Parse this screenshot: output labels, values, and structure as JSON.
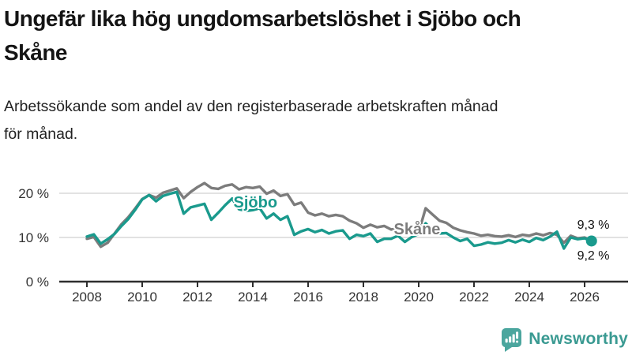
{
  "header": {
    "title_line1": "Ungefär lika hög ungdomsarbetslöshet i Sjöbo och",
    "title_line2": "Skåne",
    "subtitle_line1": "Arbetssökande som andel av den registerbaserade arbetskraften månad",
    "subtitle_line2": "för månad."
  },
  "chart_data": {
    "type": "line",
    "title": "Ungefär lika hög ungdomsarbetslöshet i Sjöbo och Skåne",
    "subtitle": "Arbetssökande som andel av den registerbaserade arbetskraften månad för månad.",
    "xlabel": "",
    "ylabel": "",
    "x_base": 2008,
    "x_step": 0.25,
    "xlim": [
      2007.6,
      2026.6
    ],
    "ylim": [
      0,
      25.4
    ],
    "grid": "horizontal",
    "grid_color": "#d8d8d8",
    "axis_color": "#2e2e2e",
    "tick_label_color": "#333333",
    "x_ticks": [
      {
        "value": 2008,
        "label": "2008"
      },
      {
        "value": 2010,
        "label": "2010"
      },
      {
        "value": 2012,
        "label": "2012"
      },
      {
        "value": 2014,
        "label": "2014"
      },
      {
        "value": 2016,
        "label": "2016"
      },
      {
        "value": 2018,
        "label": "2018"
      },
      {
        "value": 2020,
        "label": "2020"
      },
      {
        "value": 2022,
        "label": "2022"
      },
      {
        "value": 2024,
        "label": "2024"
      },
      {
        "value": 2026,
        "label": "2026"
      }
    ],
    "y_ticks": [
      {
        "value": 0,
        "label": "0 %"
      },
      {
        "value": 10,
        "label": "10 %"
      },
      {
        "value": 20,
        "label": "20 %"
      }
    ],
    "series": [
      {
        "name": "Skåne",
        "color": "#7c7c7c",
        "end_label": "9,3 %",
        "end_dot": false,
        "values": [
          9.7,
          10.1,
          7.9,
          8.8,
          10.9,
          13.0,
          14.6,
          16.6,
          18.7,
          19.6,
          19.0,
          20.1,
          20.6,
          21.1,
          18.9,
          20.3,
          21.4,
          22.3,
          21.2,
          21.0,
          21.7,
          22.0,
          20.9,
          21.4,
          21.2,
          21.5,
          19.9,
          20.6,
          19.4,
          19.8,
          17.4,
          17.9,
          15.6,
          15.0,
          15.4,
          14.8,
          15.1,
          14.8,
          13.8,
          13.2,
          12.2,
          12.9,
          12.3,
          12.6,
          11.8,
          12.0,
          11.2,
          11.5,
          11.2,
          16.6,
          15.2,
          13.8,
          13.3,
          12.2,
          11.6,
          11.2,
          10.9,
          10.4,
          10.6,
          10.3,
          10.2,
          10.5,
          10.1,
          10.6,
          10.4,
          10.9,
          10.5,
          11.0,
          10.6,
          8.8,
          10.4,
          9.8,
          10.0,
          9.3
        ]
      },
      {
        "name": "Sjöbo",
        "color": "#1a9a8d",
        "end_label": "9,2 %",
        "end_dot": true,
        "values": [
          10.2,
          10.7,
          8.6,
          9.6,
          10.8,
          12.6,
          14.2,
          16.3,
          18.6,
          19.6,
          18.2,
          19.4,
          19.9,
          20.3,
          15.4,
          16.8,
          17.2,
          17.6,
          14.0,
          15.6,
          17.3,
          18.8,
          16.4,
          16.0,
          16.2,
          16.6,
          14.3,
          15.4,
          14.0,
          14.8,
          10.6,
          11.4,
          11.9,
          11.2,
          11.7,
          10.9,
          11.4,
          11.6,
          9.7,
          10.6,
          10.3,
          10.9,
          9.0,
          9.7,
          9.7,
          10.4,
          9.0,
          10.1,
          10.8,
          13.2,
          11.6,
          10.9,
          11.0,
          10.0,
          9.2,
          9.7,
          8.1,
          8.4,
          8.9,
          8.6,
          8.8,
          9.4,
          8.9,
          9.5,
          9.0,
          9.9,
          9.4,
          10.2,
          11.3,
          7.5,
          10.0,
          9.6,
          9.8,
          9.2
        ]
      }
    ],
    "annotations": [
      {
        "text": "Sjöbo",
        "x": 2013.3,
        "y": 18.0,
        "color": "#1a9a8d",
        "bold": true,
        "size": 20,
        "anchor": "start"
      },
      {
        "text": "Skåne",
        "x": 2019.1,
        "y": 12.0,
        "color": "#7c7c7c",
        "bold": true,
        "size": 20,
        "anchor": "start"
      },
      {
        "text": "9,3 %",
        "x": 2026.9,
        "y": 13.0,
        "color": "#111111",
        "bold": false,
        "size": 16,
        "anchor": "end"
      },
      {
        "text": "9,2 %",
        "x": 2026.9,
        "y": 6.0,
        "color": "#111111",
        "bold": false,
        "size": 16,
        "anchor": "end"
      }
    ]
  },
  "footer": {
    "brand": "Newsworthy",
    "brand_color": "#3a9a92",
    "icon_color": "#4ba69e"
  }
}
